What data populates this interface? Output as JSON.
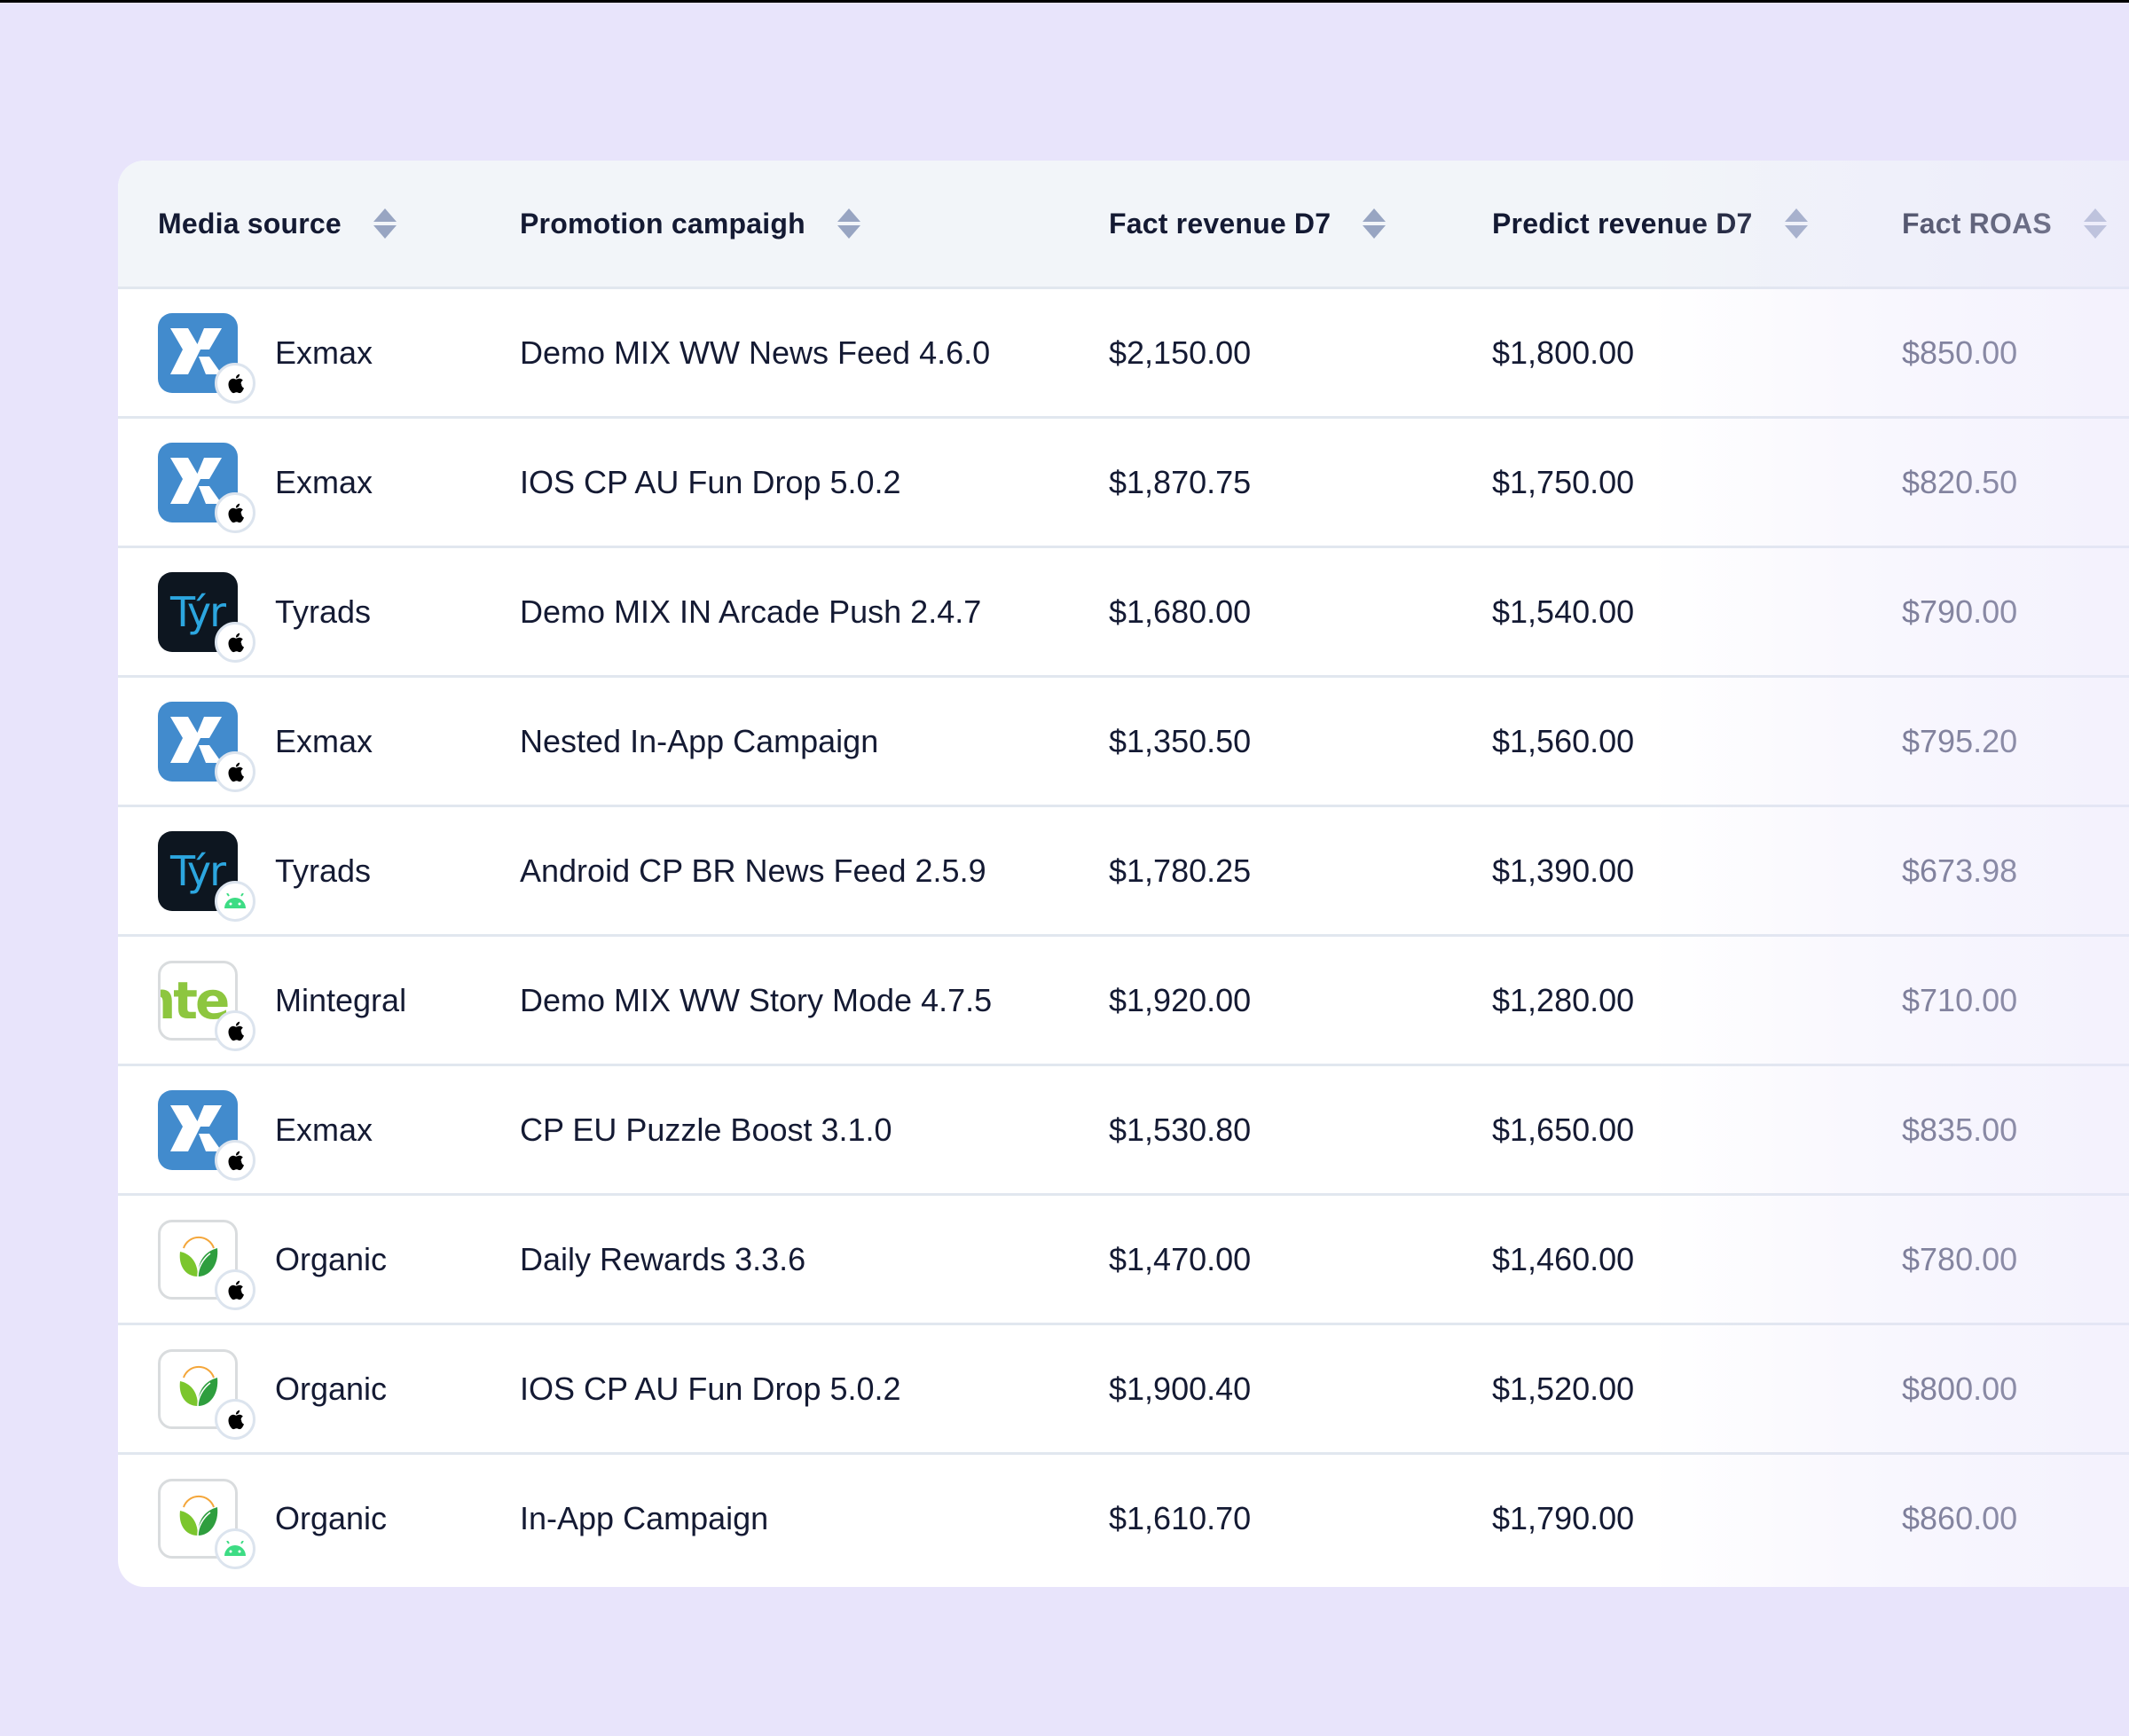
{
  "colors": {
    "background": "#E8E4FB",
    "header_bg": "#F2F5F9",
    "divider": "#E1E7EF",
    "sort_icon": "#98A5C2",
    "text": "#141a33",
    "exmax": "#428BCD",
    "tyrads": "#0D1620",
    "tyrads_text": "#2CA6DF",
    "mintegral": "#8DC63F",
    "android": "#3DDC84"
  },
  "table": {
    "columns": [
      {
        "key": "media_source",
        "label": "Media source",
        "sort_icon": "sort-updown-icon"
      },
      {
        "key": "promotion_campaign",
        "label": "Promotion campaigh",
        "sort_icon": "sort-updown-icon"
      },
      {
        "key": "fact_revenue_d7",
        "label": "Fact revenue D7",
        "sort_icon": "sort-updown-icon"
      },
      {
        "key": "predict_revenue_d7",
        "label": "Predict revenue D7",
        "sort_icon": "sort-updown-icon"
      },
      {
        "key": "fact_roas",
        "label": "Fact ROAS",
        "sort_icon": "sort-updown-icon"
      }
    ],
    "rows": [
      {
        "media_source": "Exmax",
        "logo": "exmax",
        "platform": "ios",
        "promotion_campaign": "Demo MIX WW News Feed 4.6.0",
        "fact_revenue_d7": "$2,150.00",
        "predict_revenue_d7": "$1,800.00",
        "fact_roas": "$850.00"
      },
      {
        "media_source": "Exmax",
        "logo": "exmax",
        "platform": "ios",
        "promotion_campaign": "IOS CP AU Fun Drop 5.0.2",
        "fact_revenue_d7": "$1,870.75",
        "predict_revenue_d7": "$1,750.00",
        "fact_roas": "$820.50"
      },
      {
        "media_source": "Tyrads",
        "logo": "tyrads",
        "platform": "ios",
        "promotion_campaign": "Demo MIX IN Arcade Push 2.4.7",
        "fact_revenue_d7": "$1,680.00",
        "predict_revenue_d7": "$1,540.00",
        "fact_roas": "$790.00"
      },
      {
        "media_source": "Exmax",
        "logo": "exmax",
        "platform": "ios",
        "promotion_campaign": "Nested In-App Campaign",
        "fact_revenue_d7": "$1,350.50",
        "predict_revenue_d7": "$1,560.00",
        "fact_roas": "$795.20"
      },
      {
        "media_source": "Tyrads",
        "logo": "tyrads",
        "platform": "android",
        "promotion_campaign": "Android CP BR News Feed 2.5.9",
        "fact_revenue_d7": "$1,780.25",
        "predict_revenue_d7": "$1,390.00",
        "fact_roas": "$673.98"
      },
      {
        "media_source": "Mintegral",
        "logo": "mintegral",
        "platform": "ios",
        "promotion_campaign": "Demo MIX WW Story Mode 4.7.5",
        "fact_revenue_d7": "$1,920.00",
        "predict_revenue_d7": "$1,280.00",
        "fact_roas": "$710.00"
      },
      {
        "media_source": "Exmax",
        "logo": "exmax",
        "platform": "ios",
        "promotion_campaign": "CP EU Puzzle Boost 3.1.0",
        "fact_revenue_d7": "$1,530.80",
        "predict_revenue_d7": "$1,650.00",
        "fact_roas": "$835.00"
      },
      {
        "media_source": "Organic",
        "logo": "organic",
        "platform": "ios",
        "promotion_campaign": "Daily Rewards 3.3.6",
        "fact_revenue_d7": "$1,470.00",
        "predict_revenue_d7": "$1,460.00",
        "fact_roas": "$780.00"
      },
      {
        "media_source": "Organic",
        "logo": "organic",
        "platform": "ios",
        "promotion_campaign": "IOS CP AU Fun Drop 5.0.2",
        "fact_revenue_d7": "$1,900.40",
        "predict_revenue_d7": "$1,520.00",
        "fact_roas": "$800.00"
      },
      {
        "media_source": "Organic",
        "logo": "organic",
        "platform": "android",
        "promotion_campaign": "In-App Campaign",
        "fact_revenue_d7": "$1,610.70",
        "predict_revenue_d7": "$1,790.00",
        "fact_roas": "$860.00"
      }
    ]
  },
  "logos": {
    "tyrads_glyph": "Týr",
    "mintegral_glyph": "nte"
  }
}
